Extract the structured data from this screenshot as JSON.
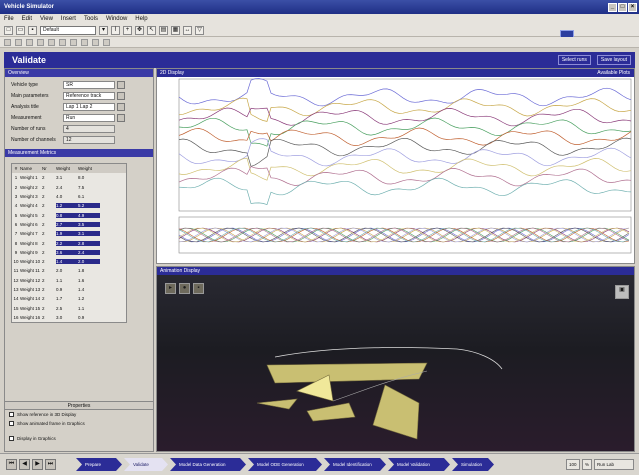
{
  "window": {
    "title": "Vehicle Simulator",
    "controls": [
      "_",
      "□",
      "×"
    ]
  },
  "menu": {
    "items": [
      "File",
      "Edit",
      "View",
      "Insert",
      "Tools",
      "Window",
      "Help"
    ]
  },
  "toolbar": {
    "combo_value": "Default"
  },
  "module": {
    "title": "Validate",
    "actions": [
      "Select runs",
      "Save layout"
    ]
  },
  "left_panel": {
    "section_title": "Overview",
    "fields": [
      {
        "label": "Vehicle type",
        "value": "SR"
      },
      {
        "label": "Main parameters",
        "value": "Reference track"
      },
      {
        "label": "Analysis title",
        "value": "Lap 1 Lap 2"
      },
      {
        "label": "Measurement",
        "value": "Run"
      },
      {
        "label": "Number of runs",
        "value": "4"
      },
      {
        "label": "Number of channels",
        "value": "12"
      }
    ],
    "table_title": "Measurement Metrics",
    "table_headers": [
      "#",
      "Name",
      "Nr",
      "Weight",
      "Weight"
    ],
    "table_rows": [
      [
        "1",
        "Weight 1",
        "2",
        "3.1",
        "8.0"
      ],
      [
        "2",
        "Weight 2",
        "2",
        "2.4",
        "7.5"
      ],
      [
        "3",
        "Weight 3",
        "2",
        "4.0",
        "6.1"
      ],
      [
        "4",
        "Weight 4",
        "2",
        "1.2",
        "5.2"
      ],
      [
        "5",
        "Weight 5",
        "2",
        "0.8",
        "4.9"
      ],
      [
        "6",
        "Weight 6",
        "2",
        "2.7",
        "3.5"
      ],
      [
        "7",
        "Weight 7",
        "2",
        "1.9",
        "3.1"
      ],
      [
        "8",
        "Weight 8",
        "2",
        "2.2",
        "2.8"
      ],
      [
        "9",
        "Weight 9",
        "2",
        "3.6",
        "2.4"
      ],
      [
        "10",
        "Weight 10",
        "2",
        "1.4",
        "2.0"
      ],
      [
        "11",
        "Weight 11",
        "2",
        "2.0",
        "1.8"
      ],
      [
        "12",
        "Weight 12",
        "2",
        "1.1",
        "1.6"
      ],
      [
        "13",
        "Weight 13",
        "2",
        "0.9",
        "1.4"
      ],
      [
        "14",
        "Weight 14",
        "2",
        "1.7",
        "1.2"
      ],
      [
        "15",
        "Weight 15",
        "2",
        "2.5",
        "1.1"
      ],
      [
        "16",
        "Weight 16",
        "2",
        "3.0",
        "0.9"
      ]
    ],
    "selected_rows": [
      3,
      4,
      5,
      6,
      7,
      8,
      9
    ],
    "properties_title": "Properties",
    "checkboxes": [
      "Show reference in 3D Display",
      "Show animated frame in Graphics"
    ],
    "small_checkbox": "Display in Graphics"
  },
  "plot_panel": {
    "title": "2D Display",
    "right_label": "Available Plots"
  },
  "anim_panel": {
    "title": "Animation Display"
  },
  "bottom": {
    "nav_buttons": [
      "⏮",
      "◀",
      "▶",
      "⏭"
    ],
    "steps": [
      "Prepare",
      "Validate",
      "Model Data Generation",
      "Model ODE Generation",
      "Model Identification",
      "Model Validation",
      "Simulation"
    ],
    "active_step": 1,
    "status": [
      "100",
      "%",
      "Run Lab"
    ]
  },
  "colors": {
    "header": "#2b2c97",
    "accent": "#3a3aa6",
    "panel": "#d4d0c8"
  }
}
